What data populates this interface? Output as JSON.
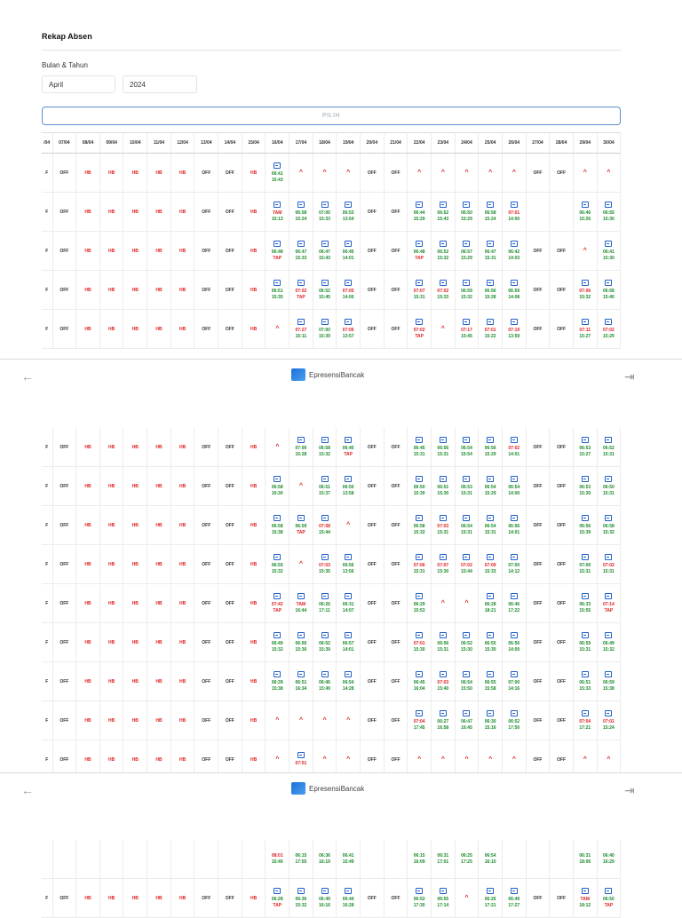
{
  "page": {
    "title": "Rekap Absen"
  },
  "form": {
    "month_year_label": "Bulan & Tahun",
    "month_value": "April",
    "year_value": "2024",
    "submit_label": "PILIH"
  },
  "footer": {
    "brand": "EpresensiBancak",
    "back_icon": "arrow-left-icon",
    "logout_icon": "logout-icon"
  },
  "table": {
    "headers": [
      "/04",
      "07/04",
      "08/04",
      "09/04",
      "10/04",
      "11/04",
      "12/04",
      "13/04",
      "14/04",
      "15/04",
      "16/04",
      "17/04",
      "18/04",
      "19/04",
      "20/04",
      "21/04",
      "22/04",
      "23/04",
      "24/04",
      "25/04",
      "26/04",
      "27/04",
      "28/04",
      "29/04",
      "30/04"
    ],
    "page1": [
      [
        "F",
        "OFF",
        "HB",
        "HB",
        "HB",
        "HB",
        "HB",
        "OFF",
        "OFF",
        "HB",
        "i|06:41|15:43",
        "^",
        "^",
        "^",
        "OFF",
        "OFF",
        "^",
        "^",
        "^",
        "^",
        "^",
        "OFF",
        "OFF",
        "^",
        "^"
      ],
      [
        "F",
        "OFF",
        "HB",
        "HB",
        "HB",
        "HB",
        "HB",
        "OFF",
        "OFF",
        "HB",
        "i|TAM|15:13",
        "i|06:58|15:24",
        "i|07:00|15:33",
        "i|06:53|13:54",
        "OFF",
        "OFF",
        "i|06:44|15:29",
        "i|06:52|15:43",
        "i|06:50|15:29",
        "i|06:58|15:24",
        "i|07:01|14:00",
        "",
        "",
        "i|06:46|15:26",
        "i|06:55|15:30"
      ],
      [
        "F",
        "OFF",
        "HB",
        "HB",
        "HB",
        "HB",
        "HB",
        "OFF",
        "OFF",
        "HB",
        "i|06:48|TAP",
        "i|06:47|15:33",
        "i|06:47|15:43",
        "i|06:45|14:01",
        "OFF",
        "OFF",
        "i|06:48|TAP",
        "i|06:52|15:32",
        "i|06:57|15:29",
        "i|06:47|15:31",
        "i|06:42|14:03",
        "OFF",
        "OFF",
        "^",
        "i|06:41|15:30"
      ],
      [
        "F",
        "OFF",
        "HB",
        "HB",
        "HB",
        "HB",
        "HB",
        "OFF",
        "OFF",
        "HB",
        "i|06:51|15:35",
        "i|07:02|TAP",
        "i|06:52|15:45",
        "i|07:05|14:00",
        "OFF",
        "OFF",
        "i|07:07|15:31",
        "i|07:02|15:33",
        "i|06:59|15:32",
        "i|06:56|15:28",
        "i|06:59|14:08",
        "OFF",
        "OFF",
        "i|07:06|15:32",
        "i|06:58|15:40"
      ],
      [
        "F",
        "OFF",
        "HB",
        "HB",
        "HB",
        "HB",
        "HB",
        "OFF",
        "OFF",
        "HB",
        "^",
        "i|07:27|15:11",
        "i|07:00|15:39",
        "i|07:06|13:57",
        "OFF",
        "OFF",
        "i|07:02|TAP",
        "^",
        "i|07:17|15:45",
        "i|07:01|15:22",
        "i|07:19|13:59",
        "OFF",
        "OFF",
        "i|07:11|15:27",
        "i|07:02|15:29"
      ]
    ],
    "page2": [
      [
        "F",
        "OFF",
        "HB",
        "HB",
        "HB",
        "HB",
        "HB",
        "OFF",
        "OFF",
        "HB",
        "^",
        "i|07:00|15:28",
        "i|06:58|15:32",
        "i|06:45|TAP",
        "OFF",
        "OFF",
        "i|06:45|15:31",
        "i|06:56|15:31",
        "i|06:54|16:54",
        "i|06:56|15:29",
        "i|07:02|14:01",
        "OFF",
        "OFF",
        "i|06:53|15:27",
        "i|06:52|15:31"
      ],
      [
        "F",
        "OFF",
        "HB",
        "HB",
        "HB",
        "HB",
        "HB",
        "OFF",
        "OFF",
        "HB",
        "i|06:58|15:30",
        "^",
        "i|06:51|15:37",
        "i|06:50|13:58",
        "OFF",
        "OFF",
        "i|06:50|15:30",
        "i|06:51|15:30",
        "i|06:53|15:31",
        "i|06:54|15:29",
        "i|06:54|14:00",
        "OFF",
        "OFF",
        "i|06:53|15:30",
        "i|06:50|15:31"
      ],
      [
        "F",
        "OFF",
        "HB",
        "HB",
        "HB",
        "HB",
        "HB",
        "OFF",
        "OFF",
        "HB",
        "i|06:58|15:38",
        "i|06:59|TAP",
        "i|07:08|15:44",
        "^",
        "OFF",
        "OFF",
        "i|06:58|15:32",
        "i|07:03|15:31",
        "i|06:54|15:31",
        "i|06:54|15:31",
        "i|06:56|14:01",
        "OFF",
        "OFF",
        "i|06:56|15:39",
        "i|06:58|15:32"
      ],
      [
        "F",
        "OFF",
        "HB",
        "HB",
        "HB",
        "HB",
        "HB",
        "OFF",
        "OFF",
        "HB",
        "i|06:59|15:32",
        "^",
        "i|07:03|15:35",
        "i|06:56|13:56",
        "OFF",
        "OFF",
        "i|07:06|15:31",
        "i|07:07|15:30",
        "i|07:02|15:44",
        "i|07:09|15:33",
        "i|07:00|14:12",
        "OFF",
        "OFF",
        "i|07:00|15:31",
        "i|07:02|15:31"
      ],
      [
        "F",
        "OFF",
        "HB",
        "HB",
        "HB",
        "HB",
        "HB",
        "OFF",
        "OFF",
        "HB",
        "i|07:42|TAP",
        "i|TAM|16:44",
        "i|06:26|17:11",
        "i|06:31|14:07",
        "OFF",
        "OFF",
        "i|06:29|15:53",
        "^",
        "^",
        "i|06:28|18:21",
        "i|06:46|17:22",
        "OFF",
        "OFF",
        "i|06:33|15:55",
        "i|07:14|TAP"
      ],
      [
        "F",
        "OFF",
        "HB",
        "HB",
        "HB",
        "HB",
        "HB",
        "OFF",
        "OFF",
        "HB",
        "i|06:49|15:32",
        "i|06:56|15:30",
        "i|06:52|15:39",
        "i|06:57|14:01",
        "OFF",
        "OFF",
        "i|07:01|15:30",
        "i|06:56|15:31",
        "i|06:52|15:30",
        "i|06:55|15:30",
        "i|06:56|14:00",
        "OFF",
        "OFF",
        "i|06:59|15:31",
        "i|06:49|15:32"
      ],
      [
        "F",
        "OFF",
        "HB",
        "HB",
        "HB",
        "HB",
        "HB",
        "OFF",
        "OFF",
        "HB",
        "i|06:39|15:38",
        "i|06:51|16:34",
        "i|06:46|15:49",
        "i|06:54|14:28",
        "OFF",
        "OFF",
        "i|06:45|16:04",
        "i|07:03|15:40",
        "i|06:54|15:50",
        "i|06:55|15:58",
        "i|07:00|14:16",
        "OFF",
        "OFF",
        "i|06:51|15:33",
        "i|06:59|15:38"
      ],
      [
        "F",
        "OFF",
        "HB",
        "HB",
        "HB",
        "HB",
        "HB",
        "OFF",
        "OFF",
        "HB",
        "^",
        "^",
        "^",
        "^",
        "OFF",
        "OFF",
        "i|07:04|17:45",
        "i|06:27|16:58",
        "i|06:47|16:45",
        "i|06:30|15:16",
        "i|06:52|17:50",
        "OFF",
        "OFF",
        "i|07:04|17:21",
        "i|07:01|15:24"
      ],
      [
        "F",
        "OFF",
        "HB",
        "HB",
        "HB",
        "HB",
        "HB",
        "OFF",
        "OFF",
        "HB",
        "^",
        "i|07:01|",
        "^",
        "^",
        "OFF",
        "OFF",
        "^",
        "^",
        "^",
        "^",
        "^",
        "OFF",
        "OFF",
        "^",
        "^"
      ]
    ],
    "page3": [
      [
        "",
        "",
        "",
        "",
        "",
        "",
        "",
        "",
        "",
        "",
        "|08:01|15:40",
        "|06:15|17:55",
        "|06:36|16:19",
        "|06:41|15:49",
        "",
        "",
        "|06:15|16:09",
        "|06:31|17:01",
        "|06:25|17:25",
        "|06:54|16:10",
        "",
        "",
        "",
        "|06:31|18:06",
        "|06:40|16:29"
      ],
      [
        "F",
        "OFF",
        "HB",
        "HB",
        "HB",
        "HB",
        "HB",
        "OFF",
        "OFF",
        "HB",
        "i|06:28|TAP",
        "i|06:36|15:32",
        "i|06:49|16:16",
        "i|06:44|16:28",
        "OFF",
        "OFF",
        "i|06:52|17:30",
        "i|06:55|17:14",
        "^",
        "i|06:26|17:21",
        "i|06:49|17:27",
        "OFF",
        "OFF",
        "i|TAM|18:12",
        "i|06:50|TAP"
      ]
    ]
  }
}
